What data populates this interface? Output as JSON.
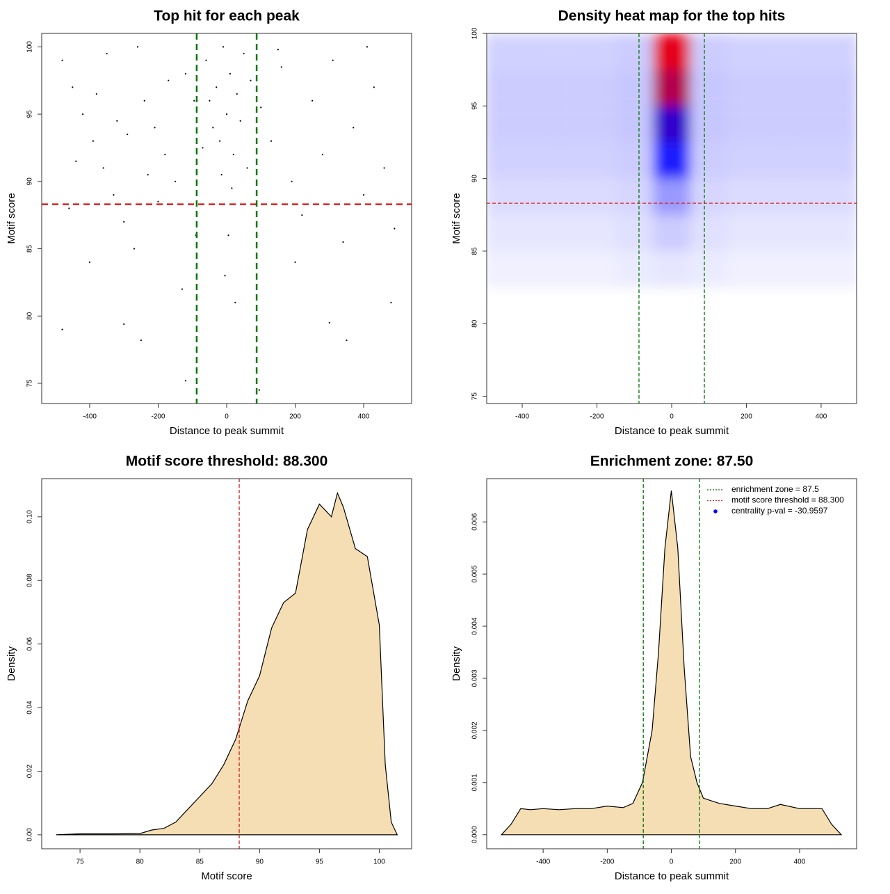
{
  "chart_data": [
    {
      "type": "scatter",
      "title": "Top hit for each peak",
      "xlabel": "Distance to peak summit",
      "ylabel": "Motif score",
      "xlim": [
        -540,
        540
      ],
      "ylim": [
        73.5,
        101
      ],
      "xticks": [
        -400,
        -200,
        0,
        200,
        400
      ],
      "yticks": [
        75,
        80,
        85,
        90,
        95,
        100
      ],
      "color": "#000000",
      "x": [
        -480,
        -450,
        -420,
        -390,
        -360,
        -330,
        -300,
        -270,
        -240,
        -210,
        -180,
        -150,
        -120,
        -90,
        -460,
        -400,
        -350,
        -290,
        -230,
        -170,
        -130,
        -440,
        -380,
        -320,
        -260,
        -200,
        -480,
        -300,
        -250,
        -120,
        -60,
        -50,
        -40,
        -30,
        -20,
        -10,
        0,
        10,
        20,
        30,
        40,
        50,
        60,
        70,
        -70,
        -15,
        15,
        5,
        -5,
        25,
        100,
        130,
        160,
        190,
        220,
        250,
        280,
        310,
        340,
        370,
        400,
        430,
        460,
        490,
        480,
        350,
        300,
        200,
        150,
        410,
        95,
        -95
      ],
      "y": [
        99,
        97,
        95,
        93,
        91,
        89,
        87,
        85,
        96,
        94,
        92,
        90,
        98,
        86,
        88,
        84,
        99.5,
        93.5,
        90.5,
        97.5,
        82,
        91.5,
        96.5,
        94.5,
        100,
        88.5,
        79,
        79.4,
        78.2,
        75.2,
        99,
        96,
        94,
        97,
        93,
        100,
        95,
        98,
        92,
        96.5,
        94.5,
        99.5,
        91,
        97.5,
        92.5,
        90.5,
        89.5,
        86,
        83,
        81,
        95.5,
        93,
        98.5,
        90,
        87.5,
        96,
        92,
        99,
        85.5,
        94,
        89,
        97,
        91,
        86.5,
        81,
        78.2,
        79.5,
        84,
        99.8,
        100,
        74.5,
        96
      ],
      "hlines": [
        {
          "value": 88.3,
          "color": "#dd2222"
        }
      ],
      "vlines": [
        {
          "value": -87.5,
          "color": "#007700"
        },
        {
          "value": 87.5,
          "color": "#007700"
        }
      ]
    },
    {
      "type": "heatmap",
      "title": "Density heat map for the top hits",
      "xlabel": "Distance to peak summit",
      "ylabel": "Motif score",
      "xlim": [
        -495,
        495
      ],
      "ylim": [
        74.5,
        100
      ],
      "xticks": [
        -400,
        -200,
        0,
        200,
        400
      ],
      "yticks": [
        75,
        80,
        85,
        90,
        95,
        100
      ],
      "xbins": [
        -500,
        -300,
        -150,
        -50,
        50,
        150,
        300,
        500
      ],
      "ybins": [
        82.5,
        85,
        87.5,
        90,
        92.5,
        95,
        97.5,
        100
      ],
      "values": [
        [
          0.03,
          0.03,
          0.04,
          0.05,
          0.04,
          0.03,
          0.03
        ],
        [
          0.05,
          0.05,
          0.06,
          0.1,
          0.06,
          0.05,
          0.05
        ],
        [
          0.07,
          0.07,
          0.08,
          0.2,
          0.08,
          0.07,
          0.07
        ],
        [
          0.09,
          0.09,
          0.1,
          0.45,
          0.1,
          0.09,
          0.09
        ],
        [
          0.1,
          0.1,
          0.11,
          0.6,
          0.11,
          0.1,
          0.1
        ],
        [
          0.1,
          0.1,
          0.11,
          0.85,
          0.11,
          0.1,
          0.1
        ],
        [
          0.09,
          0.09,
          0.1,
          0.95,
          0.1,
          0.09,
          0.09
        ]
      ],
      "zlim": [
        0,
        1
      ],
      "colors": [
        "#ffffff",
        "#0000ff",
        "#ff0000"
      ],
      "hlines": [
        {
          "value": 88.3,
          "color": "#dd2222"
        }
      ],
      "vlines": [
        {
          "value": -87.5,
          "color": "#007700"
        },
        {
          "value": 87.5,
          "color": "#007700"
        }
      ]
    },
    {
      "type": "area",
      "title": "Motif score threshold: 88.300",
      "xlabel": "Motif score",
      "ylabel": "Density",
      "xlim": [
        71.8,
        102.7
      ],
      "ylim": [
        -0.0044,
        0.112
      ],
      "xticks": [
        75,
        80,
        85,
        90,
        95,
        100
      ],
      "yticks": [
        {
          "value": 0,
          "label": "0.00"
        },
        {
          "value": 0.02,
          "label": "0.02"
        },
        {
          "value": 0.04,
          "label": "0.04"
        },
        {
          "value": 0.06,
          "label": "0.06"
        },
        {
          "value": 0.08,
          "label": "0.08"
        },
        {
          "value": 0.1,
          "label": "0.10"
        }
      ],
      "x": [
        73,
        75,
        78,
        80,
        81,
        82,
        83,
        84,
        85,
        86,
        87,
        88,
        89,
        90,
        91,
        92,
        93,
        94,
        95,
        96,
        96.5,
        97,
        98,
        99,
        100,
        100.5,
        101,
        101.5
      ],
      "y": [
        0,
        0.0003,
        0.0003,
        0.0004,
        0.0015,
        0.002,
        0.004,
        0.008,
        0.012,
        0.016,
        0.022,
        0.03,
        0.042,
        0.05,
        0.065,
        0.073,
        0.076,
        0.096,
        0.104,
        0.1,
        0.1075,
        0.103,
        0.09,
        0.0875,
        0.066,
        0.022,
        0.004,
        0
      ],
      "color": "#f5deb3",
      "vlines": [
        {
          "value": 88.3,
          "color": "#dd2222"
        }
      ]
    },
    {
      "type": "area",
      "title": "Enrichment zone: 87.50",
      "xlabel": "Distance to peak summit",
      "ylabel": "Density",
      "xlim": [
        -576,
        578
      ],
      "ylim": [
        -0.00027,
        0.00683
      ],
      "xticks": [
        -400,
        -200,
        0,
        200,
        400
      ],
      "yticks": [
        {
          "value": 0,
          "label": "0.000"
        },
        {
          "value": 0.001,
          "label": "0.001"
        },
        {
          "value": 0.002,
          "label": "0.002"
        },
        {
          "value": 0.003,
          "label": "0.003"
        },
        {
          "value": 0.004,
          "label": "0.004"
        },
        {
          "value": 0.005,
          "label": "0.005"
        },
        {
          "value": 0.006,
          "label": "0.006"
        }
      ],
      "x": [
        -530,
        -500,
        -470,
        -440,
        -400,
        -350,
        -300,
        -250,
        -200,
        -150,
        -120,
        -90,
        -60,
        -40,
        -20,
        0,
        20,
        40,
        60,
        80,
        100,
        150,
        200,
        250,
        300,
        340,
        400,
        470,
        500,
        530
      ],
      "y": [
        0,
        0.0002,
        0.0005,
        0.00048,
        0.0005,
        0.00048,
        0.0005,
        0.0005,
        0.00055,
        0.00052,
        0.0006,
        0.001,
        0.002,
        0.0035,
        0.0055,
        0.0066,
        0.0055,
        0.0032,
        0.0015,
        0.001,
        0.0007,
        0.0006,
        0.00055,
        0.0005,
        0.0005,
        0.00058,
        0.0005,
        0.0005,
        0.0002,
        0
      ],
      "color": "#f5deb3",
      "vlines": [
        {
          "value": -87.5,
          "color": "#007700"
        },
        {
          "value": 87.5,
          "color": "#007700"
        }
      ],
      "legend_position": "topright",
      "legend": [
        {
          "label": "enrichment zone = 87.5",
          "color": "#007700",
          "style": "dotted"
        },
        {
          "label": "motif score threshold = 88.300",
          "color": "#dd2222",
          "style": "dotted"
        },
        {
          "label": "centrality p-val = -30.9597",
          "color": "#0000ff",
          "style": "dot"
        }
      ]
    }
  ]
}
